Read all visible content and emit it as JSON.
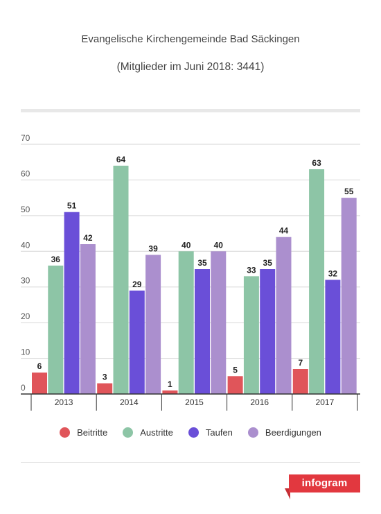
{
  "header": {
    "title": "Evangelische Kirchengemeinde Bad Säckingen",
    "subtitle": "(Mitglieder im Juni 2018: 3441)"
  },
  "chart_data": {
    "type": "bar",
    "title": "Evangelische Kirchengemeinde Bad Säckingen",
    "subtitle": "(Mitglieder im Juni 2018: 3441)",
    "categories": [
      "2013",
      "2014",
      "2015",
      "2016",
      "2017"
    ],
    "series": [
      {
        "name": "Beitritte",
        "color": "#e0555a",
        "values": [
          6,
          3,
          1,
          5,
          7
        ]
      },
      {
        "name": "Austritte",
        "color": "#8dc5a6",
        "values": [
          36,
          64,
          40,
          33,
          63
        ]
      },
      {
        "name": "Taufen",
        "color": "#6a4fd8",
        "values": [
          51,
          29,
          35,
          35,
          32
        ]
      },
      {
        "name": "Beerdigungen",
        "color": "#ab8fce",
        "values": [
          42,
          39,
          40,
          44,
          55
        ]
      }
    ],
    "ylim": [
      0,
      70
    ],
    "yticks": [
      0,
      10,
      20,
      30,
      40,
      50,
      60,
      70
    ],
    "grid": true,
    "legend": "bottom",
    "data_labels": true
  },
  "branding": {
    "logo_text": "infogram"
  }
}
